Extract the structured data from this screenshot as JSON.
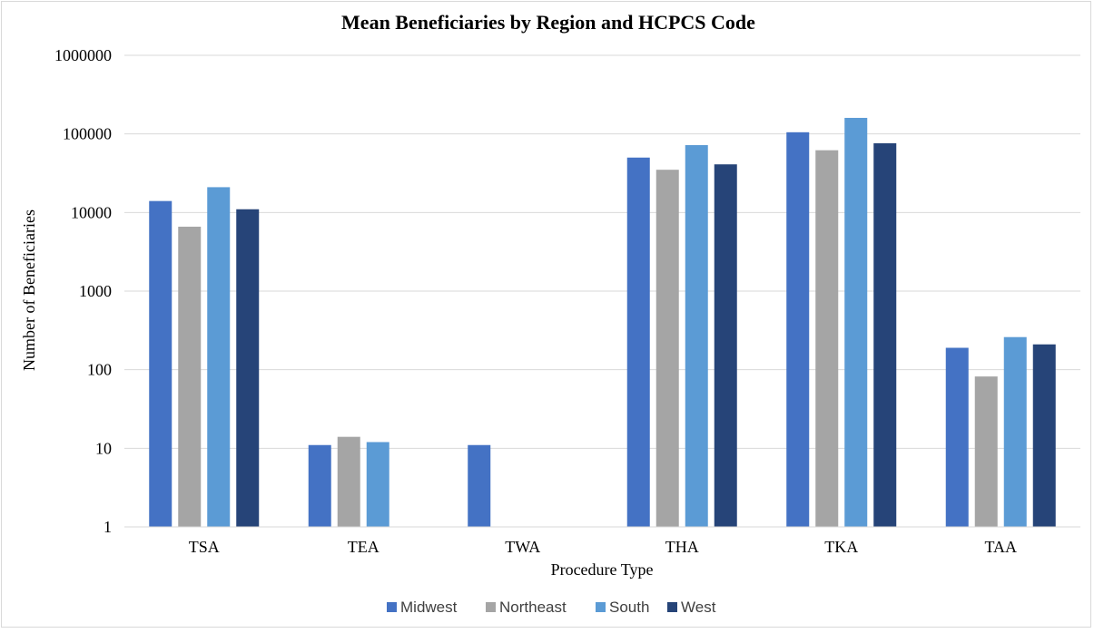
{
  "chart_data": {
    "type": "bar",
    "title": "Mean Beneficiaries by Region and HCPCS Code",
    "xlabel": "Procedure Type",
    "ylabel": "Number of Beneficiaries",
    "yscale": "log10",
    "ylim": [
      1,
      1000000
    ],
    "yticks": [
      "1",
      "10",
      "100",
      "1000",
      "10000",
      "100000",
      "1000000"
    ],
    "categories": [
      "TSA",
      "TEA",
      "TWA",
      "THA",
      "TKA",
      "TAA"
    ],
    "series": [
      {
        "name": "Midwest",
        "color": "#4472C4",
        "values": [
          14000,
          11,
          11,
          50000,
          105000,
          190
        ]
      },
      {
        "name": "Northeast",
        "color": "#A5A5A5",
        "values": [
          6600,
          14,
          null,
          35000,
          62000,
          82
        ]
      },
      {
        "name": "South",
        "color": "#5B9BD5",
        "values": [
          21000,
          12,
          null,
          72000,
          160000,
          260
        ]
      },
      {
        "name": "West",
        "color": "#264478",
        "values": [
          11000,
          null,
          null,
          41000,
          76000,
          210
        ]
      }
    ],
    "grid": true,
    "legend": "bottom"
  }
}
